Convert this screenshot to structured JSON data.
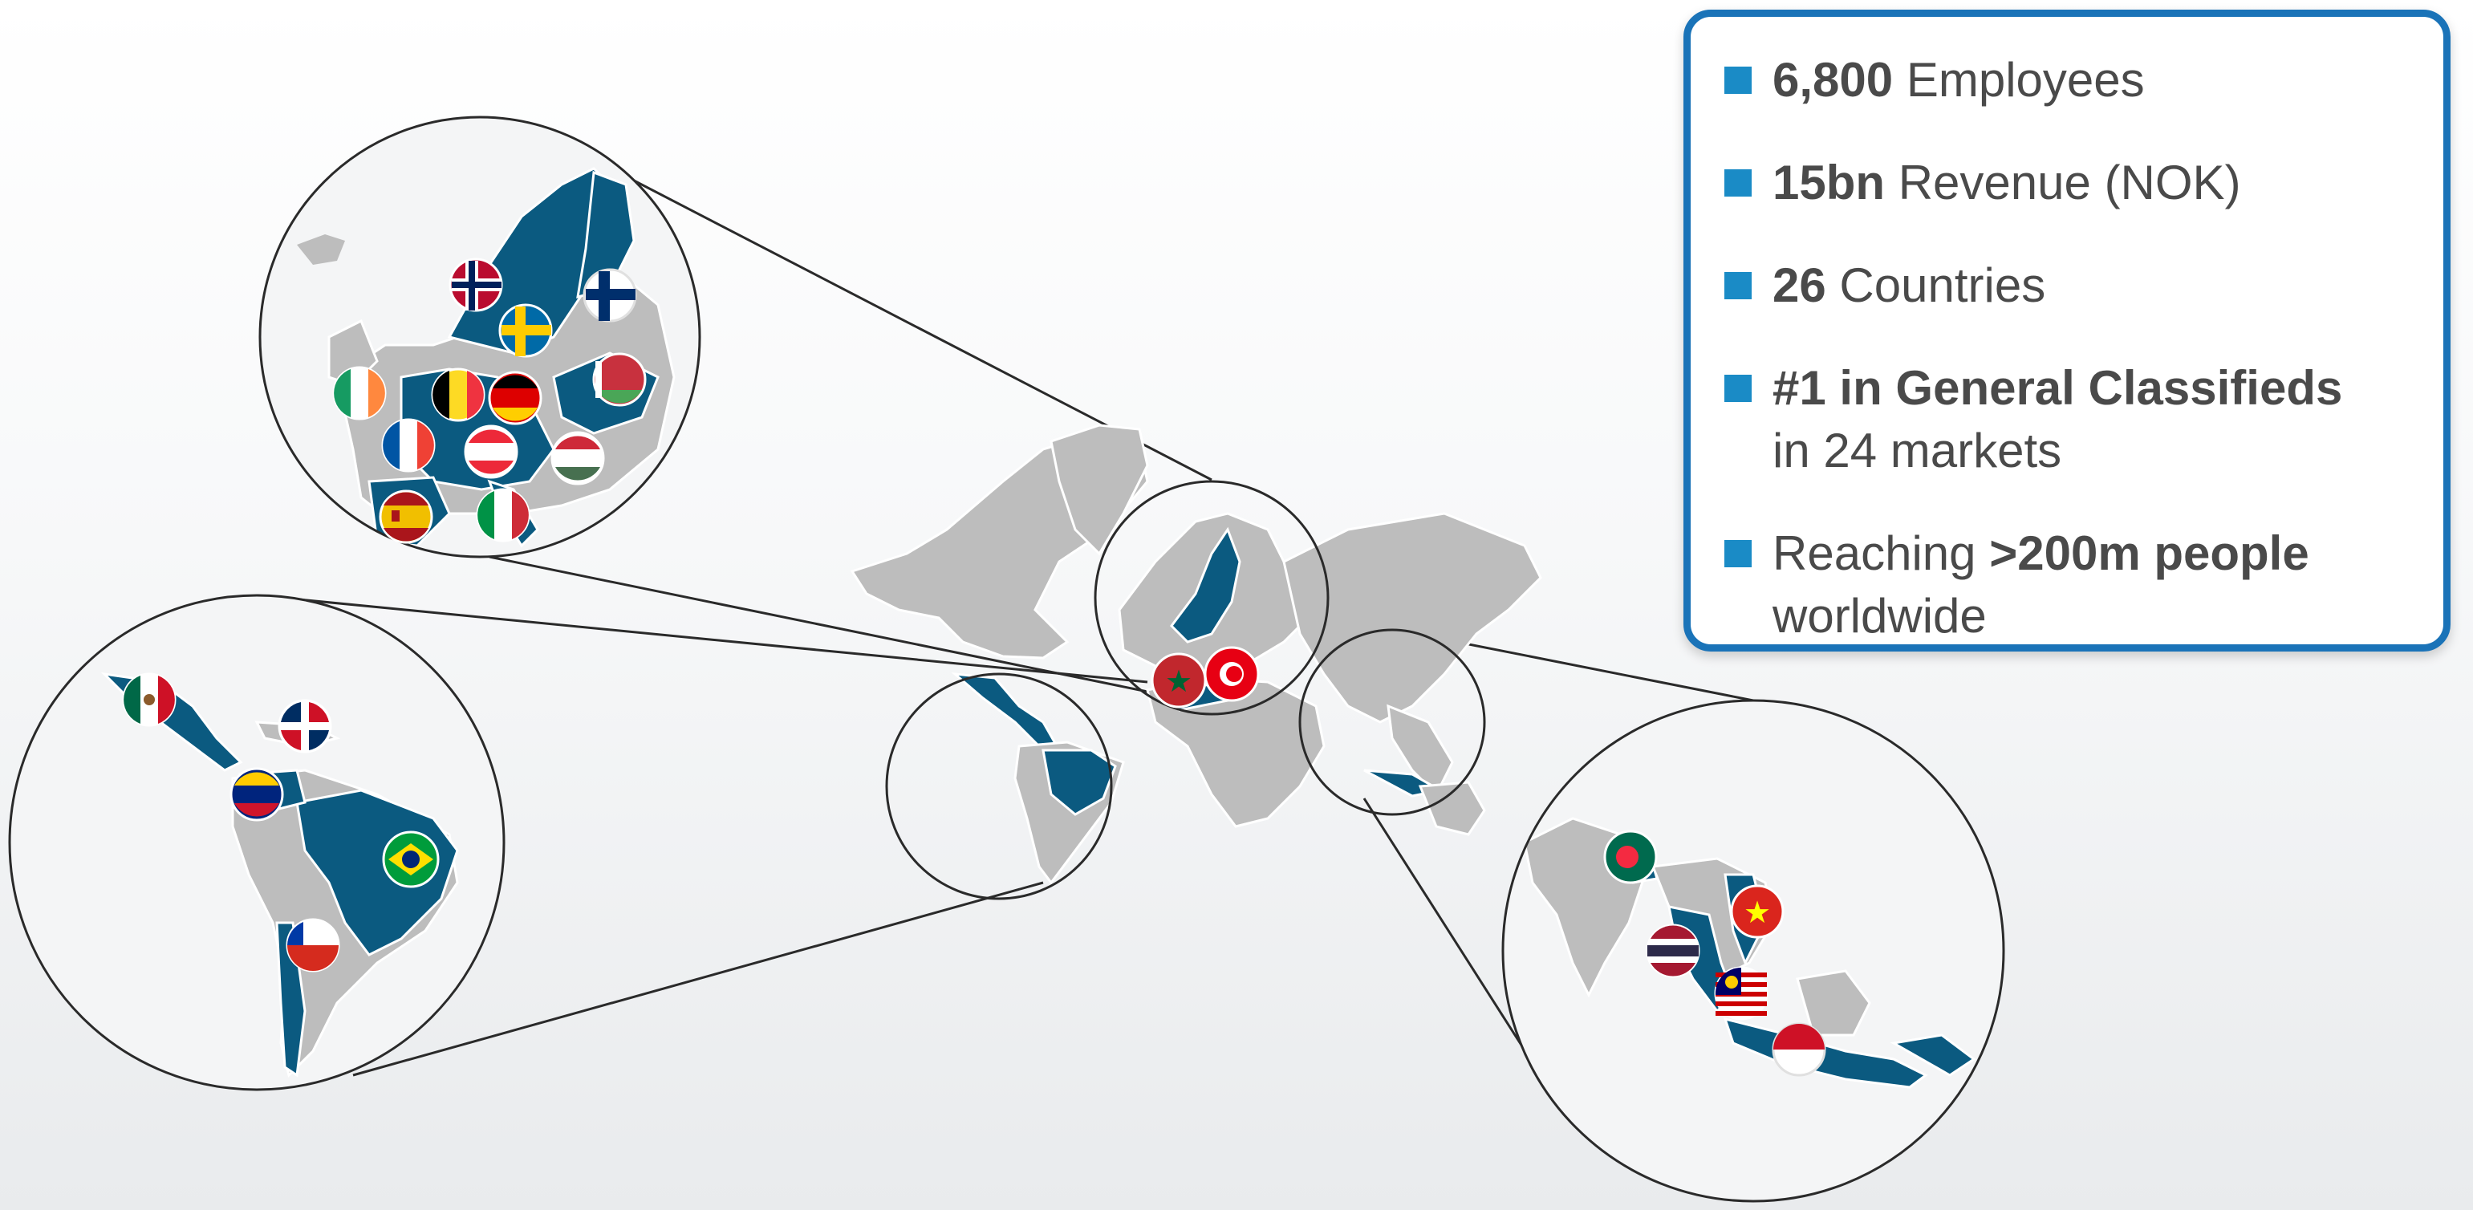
{
  "map": {
    "colors": {
      "highlight": "#0b5a80",
      "land": "#bdbdbd",
      "circle_stroke": "#2a2a2a",
      "border": "#ffffff"
    },
    "zoom_regions": [
      "europe-north-africa",
      "latin-america",
      "south-east-asia"
    ],
    "flags": {
      "europe": [
        "norway",
        "finland",
        "sweden",
        "ireland",
        "belgium",
        "germany",
        "belarus",
        "france",
        "austria",
        "hungary",
        "spain",
        "italy"
      ],
      "north_africa": [
        "morocco",
        "tunisia"
      ],
      "latin_america": [
        "mexico",
        "dominican-republic",
        "venezuela",
        "brazil",
        "chile"
      ],
      "south_east_asia": [
        "bangladesh",
        "vietnam",
        "thailand",
        "malaysia",
        "indonesia"
      ]
    }
  },
  "stats": [
    {
      "bold": "6,800",
      "text": " Employees",
      "text2": ""
    },
    {
      "bold": "15bn",
      "text": " Revenue (NOK)",
      "text2": ""
    },
    {
      "bold": "26",
      "text": " Countries",
      "text2": ""
    },
    {
      "bold": "#1 in General Classifieds",
      "text": "",
      "text2": "in 24 markets"
    },
    {
      "pre": "Reaching ",
      "bold": ">200m people",
      "text": "",
      "text2": "worldwide"
    }
  ]
}
